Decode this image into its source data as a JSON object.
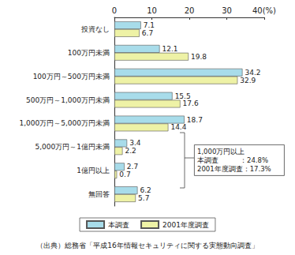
{
  "chart_data": {
    "type": "bar",
    "orientation": "horizontal",
    "categories": [
      "投資なし",
      "100万円未満",
      "100万円～500万円未満",
      "500万円～1,000万円未満",
      "1,000万円～5,000万円未満",
      "5,000万円～1億円未満",
      "1億円以上",
      "無回答"
    ],
    "series": [
      {
        "name": "本調査",
        "color": "#a8dcea",
        "values": [
          7.1,
          12.1,
          34.2,
          15.5,
          18.7,
          3.4,
          2.7,
          6.2
        ]
      },
      {
        "name": "2001年度調査",
        "color": "#eef2a6",
        "values": [
          6.7,
          19.8,
          32.9,
          17.6,
          14.4,
          2.2,
          0.7,
          5.7
        ]
      }
    ],
    "xlim": [
      0,
      40
    ],
    "xticks": [
      0,
      10,
      20,
      30,
      {
        "value": 40,
        "label": "40(%)"
      }
    ],
    "grid": false,
    "data_labels": true,
    "legend": "bottom",
    "annotations": [
      "1,000万円以上",
      "本調査　　　：24.8%",
      "2001年度調査：17.3%"
    ],
    "note": "（出典）総務省「平成16年情報セキュリティに関する実態動向調査」"
  }
}
